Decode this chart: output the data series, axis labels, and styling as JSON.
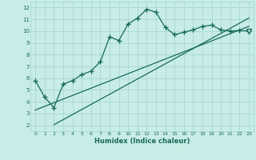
{
  "xlabel": "Humidex (Indice chaleur)",
  "bg_color": "#c8ece6",
  "grid_color": "#a0d4cc",
  "line_color": "#1a6b5a",
  "xlim": [
    -0.5,
    23.5
  ],
  "ylim": [
    1.5,
    12.5
  ],
  "xticks": [
    0,
    1,
    2,
    3,
    4,
    5,
    6,
    7,
    8,
    9,
    10,
    11,
    12,
    13,
    14,
    15,
    16,
    17,
    18,
    19,
    20,
    21,
    22,
    23
  ],
  "yticks": [
    2,
    3,
    4,
    5,
    6,
    7,
    8,
    9,
    10,
    11,
    12
  ],
  "main_x": [
    0,
    1,
    2,
    3,
    4,
    5,
    6,
    7,
    8,
    9,
    10,
    11,
    12,
    13,
    14,
    15,
    16,
    17,
    18,
    19,
    20,
    21,
    22,
    23
  ],
  "main_y": [
    5.8,
    4.4,
    3.5,
    5.5,
    5.8,
    6.3,
    6.6,
    7.4,
    9.5,
    9.2,
    10.6,
    11.1,
    11.85,
    11.6,
    10.3,
    9.7,
    9.9,
    10.1,
    10.4,
    10.5,
    10.1,
    10.0,
    10.05,
    10.0
  ],
  "trend1_x": [
    0,
    23
  ],
  "trend1_y": [
    3.3,
    10.4
  ],
  "trend2_x": [
    2,
    23
  ],
  "trend2_y": [
    2.05,
    11.1
  ],
  "triangle_x": 23,
  "triangle_y": 10.0
}
